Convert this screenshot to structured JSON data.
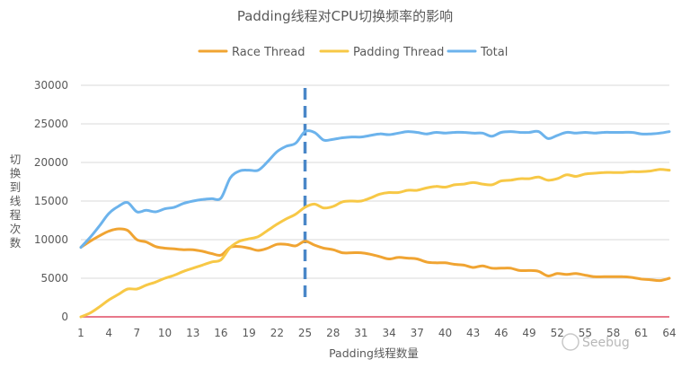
{
  "chart_data": {
    "type": "line",
    "title": "Padding线程对CPU切换频率的影响",
    "xlabel": "Padding线程数量",
    "ylabel": "切换到线程次数",
    "ylim": [
      0,
      30000
    ],
    "yticks": [
      0,
      5000,
      10000,
      15000,
      20000,
      25000,
      30000
    ],
    "xlim": [
      1,
      64
    ],
    "xticks": [
      1,
      4,
      7,
      10,
      13,
      16,
      19,
      22,
      25,
      28,
      31,
      34,
      37,
      40,
      43,
      46,
      49,
      52,
      55,
      58,
      61,
      64
    ],
    "grid": "horizontal",
    "legend": "top-center",
    "marker_line_x": 25,
    "series": [
      {
        "name": "Race Thread",
        "color": "#f0a432",
        "values": [
          9000,
          9800,
          10500,
          11100,
          11400,
          11200,
          10000,
          9700,
          9100,
          8900,
          8800,
          8700,
          8700,
          8500,
          8200,
          8000,
          9000,
          9100,
          8900,
          8600,
          8900,
          9400,
          9400,
          9200,
          9800,
          9300,
          8900,
          8700,
          8300,
          8300,
          8300,
          8100,
          7800,
          7500,
          7700,
          7600,
          7500,
          7100,
          7000,
          7000,
          6800,
          6700,
          6400,
          6600,
          6300,
          6300,
          6300,
          6000,
          6000,
          5900,
          5300,
          5600,
          5500,
          5600,
          5400,
          5200,
          5200,
          5200,
          5200,
          5100,
          4900,
          4800,
          4700,
          5000
        ]
      },
      {
        "name": "Padding Thread",
        "color": "#f7c846",
        "values": [
          0,
          500,
          1300,
          2200,
          2900,
          3600,
          3600,
          4100,
          4500,
          5000,
          5400,
          5900,
          6300,
          6700,
          7100,
          7400,
          9000,
          9800,
          10100,
          10400,
          11200,
          12000,
          12700,
          13300,
          14200,
          14600,
          14100,
          14300,
          14900,
          15000,
          15000,
          15400,
          15900,
          16100,
          16100,
          16400,
          16400,
          16700,
          16900,
          16800,
          17100,
          17200,
          17400,
          17200,
          17100,
          17600,
          17700,
          17900,
          17900,
          18100,
          17700,
          17900,
          18400,
          18200,
          18500,
          18600,
          18700,
          18700,
          18700,
          18800,
          18800,
          18900,
          19100,
          19000
        ]
      },
      {
        "name": "Total",
        "color": "#6cb3ec",
        "values": [
          9000,
          10300,
          11800,
          13400,
          14300,
          14800,
          13600,
          13800,
          13600,
          14000,
          14200,
          14700,
          15000,
          15200,
          15300,
          15400,
          18000,
          18900,
          19000,
          19000,
          20100,
          21400,
          22100,
          22500,
          24000,
          23900,
          22900,
          23000,
          23200,
          23300,
          23300,
          23500,
          23700,
          23600,
          23800,
          24000,
          23900,
          23700,
          23900,
          23800,
          23900,
          23900,
          23800,
          23800,
          23400,
          23900,
          24000,
          23900,
          23900,
          24000,
          23100,
          23500,
          23900,
          23800,
          23900,
          23800,
          23900,
          23900,
          23900,
          23900,
          23700,
          23700,
          23800,
          24000
        ]
      }
    ],
    "baseline_color": "#e8788a"
  },
  "watermark": {
    "text": "Seebug"
  }
}
